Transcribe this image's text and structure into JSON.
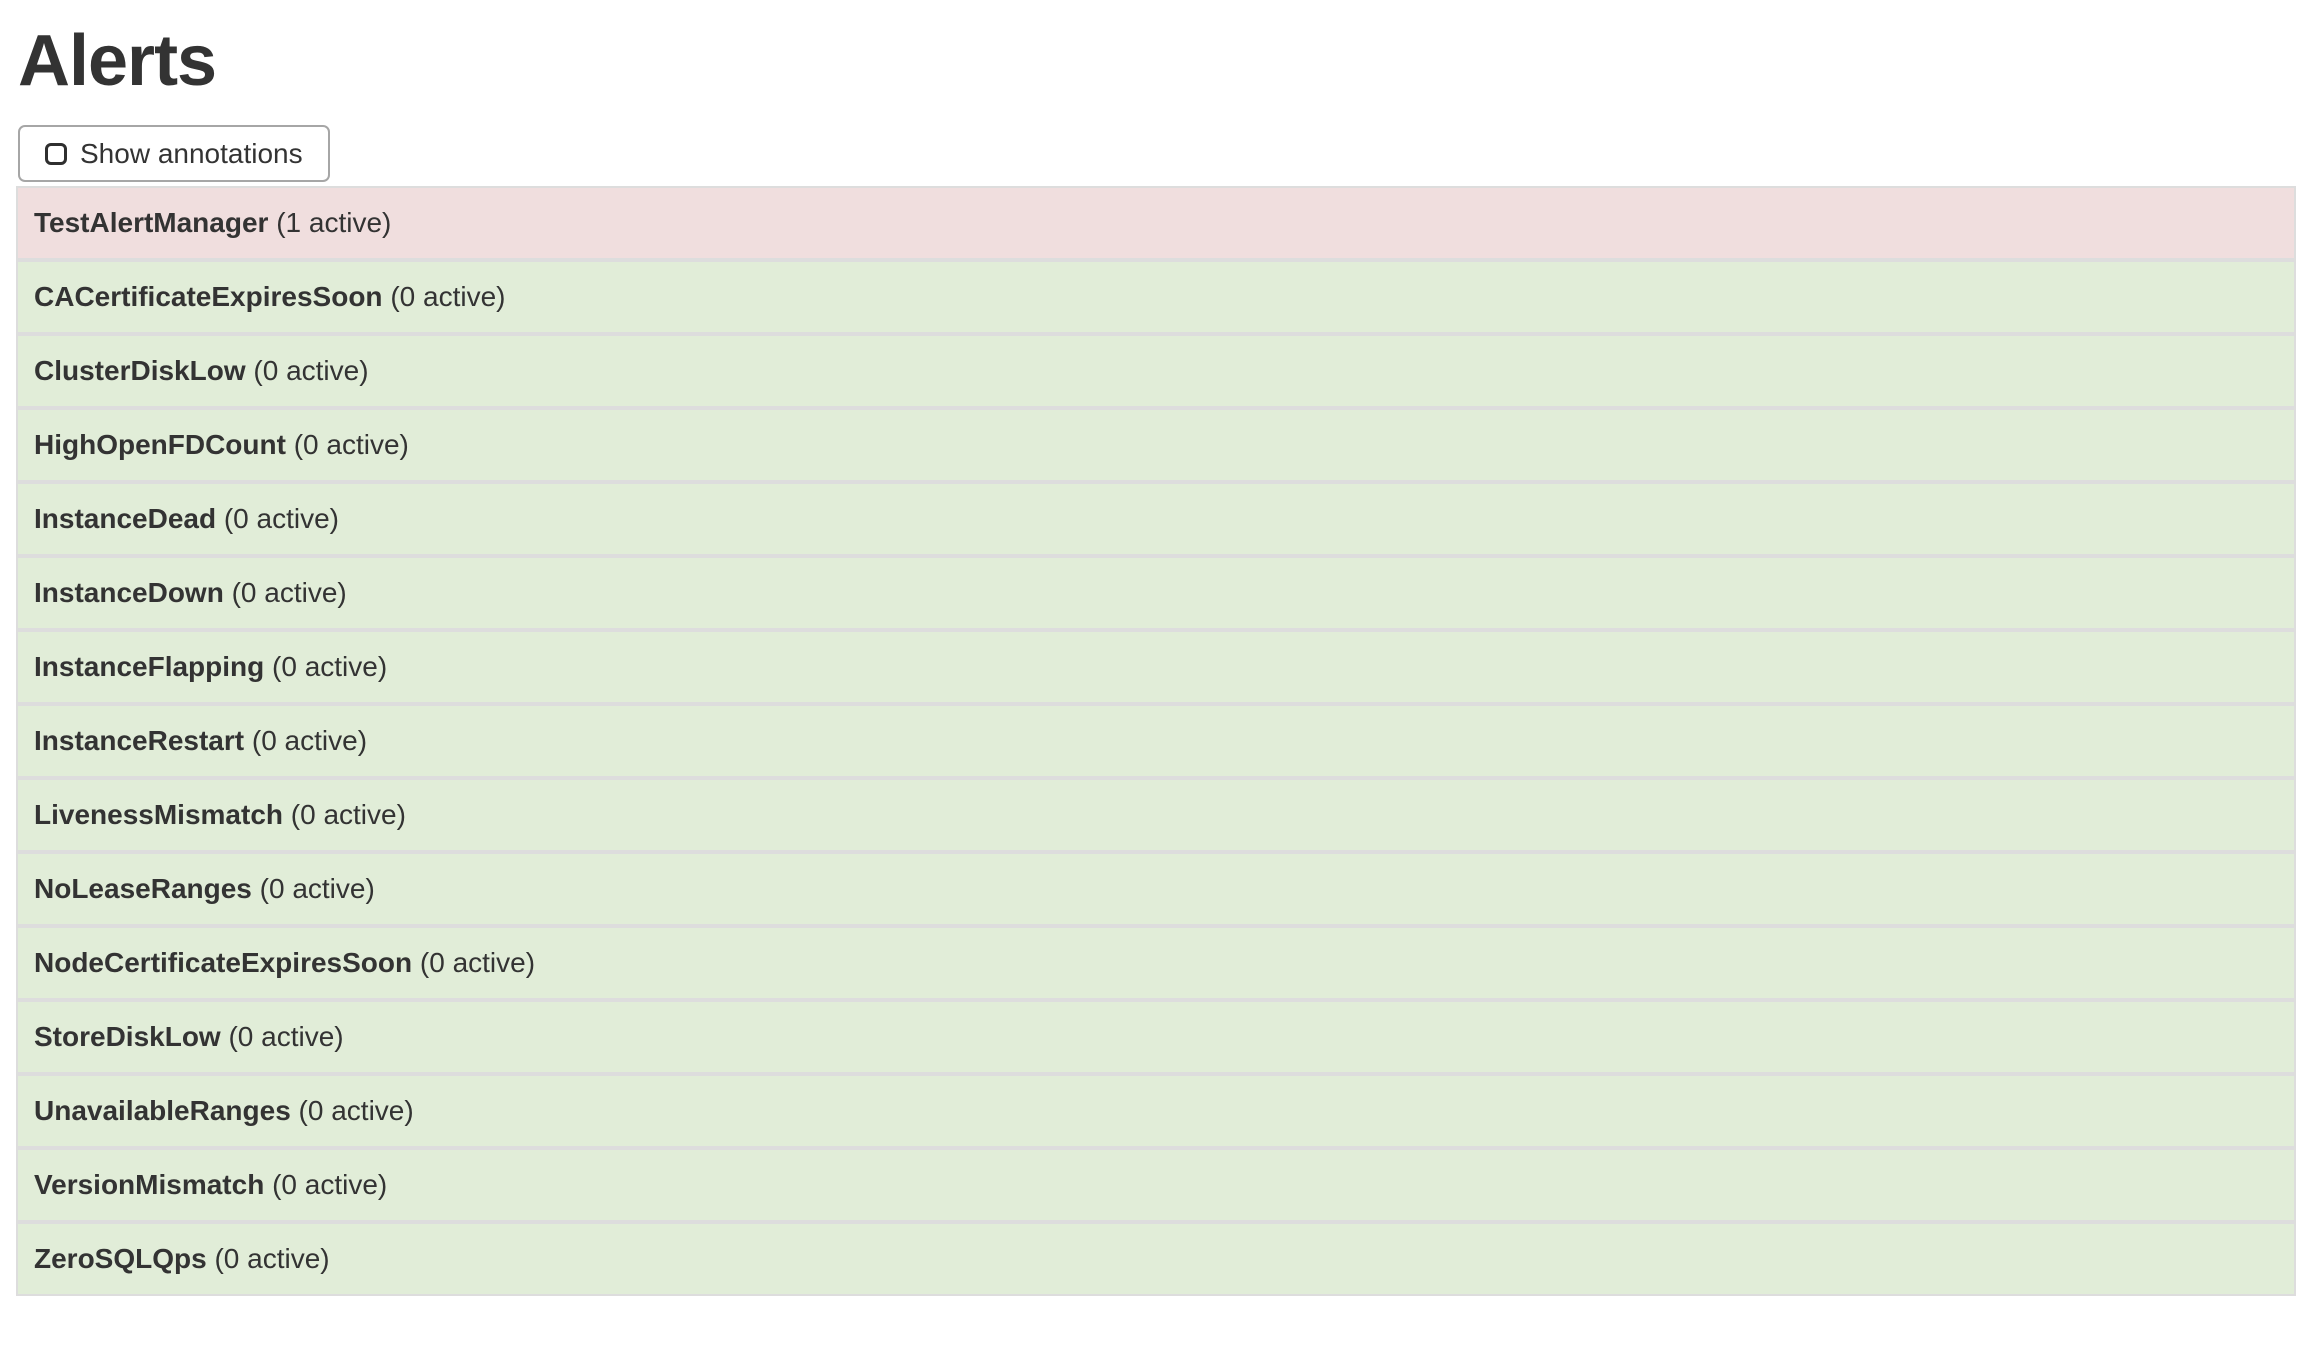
{
  "page": {
    "title": "Alerts"
  },
  "toolbar": {
    "show_annotations_label": "Show annotations",
    "checkbox_checked": false
  },
  "colors": {
    "active_bg": "#f0dede",
    "inactive_bg": "#e1edd8",
    "row_border": "#dddddd",
    "text": "#333333"
  },
  "alerts": [
    {
      "name": "TestAlertManager",
      "count_label": "(1 active)",
      "state": "active"
    },
    {
      "name": "CACertificateExpiresSoon",
      "count_label": "(0 active)",
      "state": "inactive"
    },
    {
      "name": "ClusterDiskLow",
      "count_label": "(0 active)",
      "state": "inactive"
    },
    {
      "name": "HighOpenFDCount",
      "count_label": "(0 active)",
      "state": "inactive"
    },
    {
      "name": "InstanceDead",
      "count_label": "(0 active)",
      "state": "inactive"
    },
    {
      "name": "InstanceDown",
      "count_label": "(0 active)",
      "state": "inactive"
    },
    {
      "name": "InstanceFlapping",
      "count_label": "(0 active)",
      "state": "inactive"
    },
    {
      "name": "InstanceRestart",
      "count_label": "(0 active)",
      "state": "inactive"
    },
    {
      "name": "LivenessMismatch",
      "count_label": "(0 active)",
      "state": "inactive"
    },
    {
      "name": "NoLeaseRanges",
      "count_label": "(0 active)",
      "state": "inactive"
    },
    {
      "name": "NodeCertificateExpiresSoon",
      "count_label": "(0 active)",
      "state": "inactive"
    },
    {
      "name": "StoreDiskLow",
      "count_label": "(0 active)",
      "state": "inactive"
    },
    {
      "name": "UnavailableRanges",
      "count_label": "(0 active)",
      "state": "inactive"
    },
    {
      "name": "VersionMismatch",
      "count_label": "(0 active)",
      "state": "inactive"
    },
    {
      "name": "ZeroSQLQps",
      "count_label": "(0 active)",
      "state": "inactive"
    }
  ]
}
